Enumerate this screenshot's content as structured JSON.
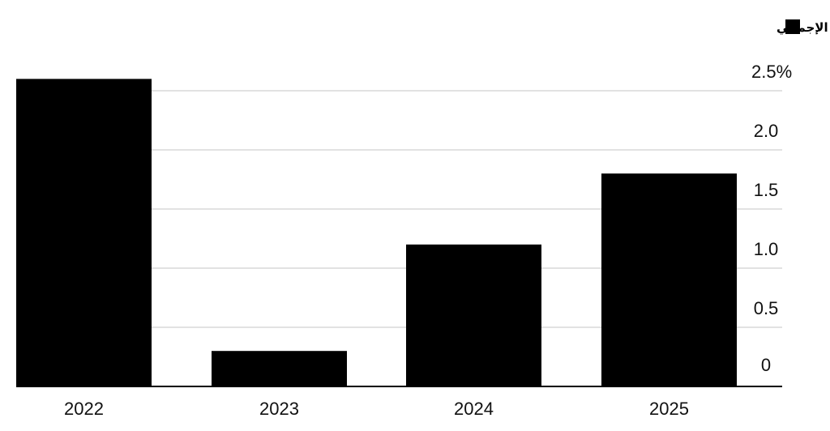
{
  "chart_data": {
    "type": "bar",
    "categories": [
      "2022",
      "2023",
      "2024",
      "2025"
    ],
    "series": [
      {
        "name": "الناتج المحلي الإجمالي",
        "values": [
          2.6,
          0.3,
          1.2,
          1.8
        ]
      }
    ],
    "yticks": [
      {
        "value": 0,
        "label": "0"
      },
      {
        "value": 0.5,
        "label": "0.5"
      },
      {
        "value": 1.0,
        "label": "1.0"
      },
      {
        "value": 1.5,
        "label": "1.5"
      },
      {
        "value": 2.0,
        "label": "2.0"
      },
      {
        "value": 2.5,
        "label": "2.5%"
      }
    ],
    "ylim": [
      0,
      2.5
    ],
    "y_axis_position": "right",
    "grid": true,
    "legend_position": "top-right",
    "colors": {
      "bar": "#000000",
      "grid": "#d9d9d9",
      "baseline": "#000000"
    }
  }
}
